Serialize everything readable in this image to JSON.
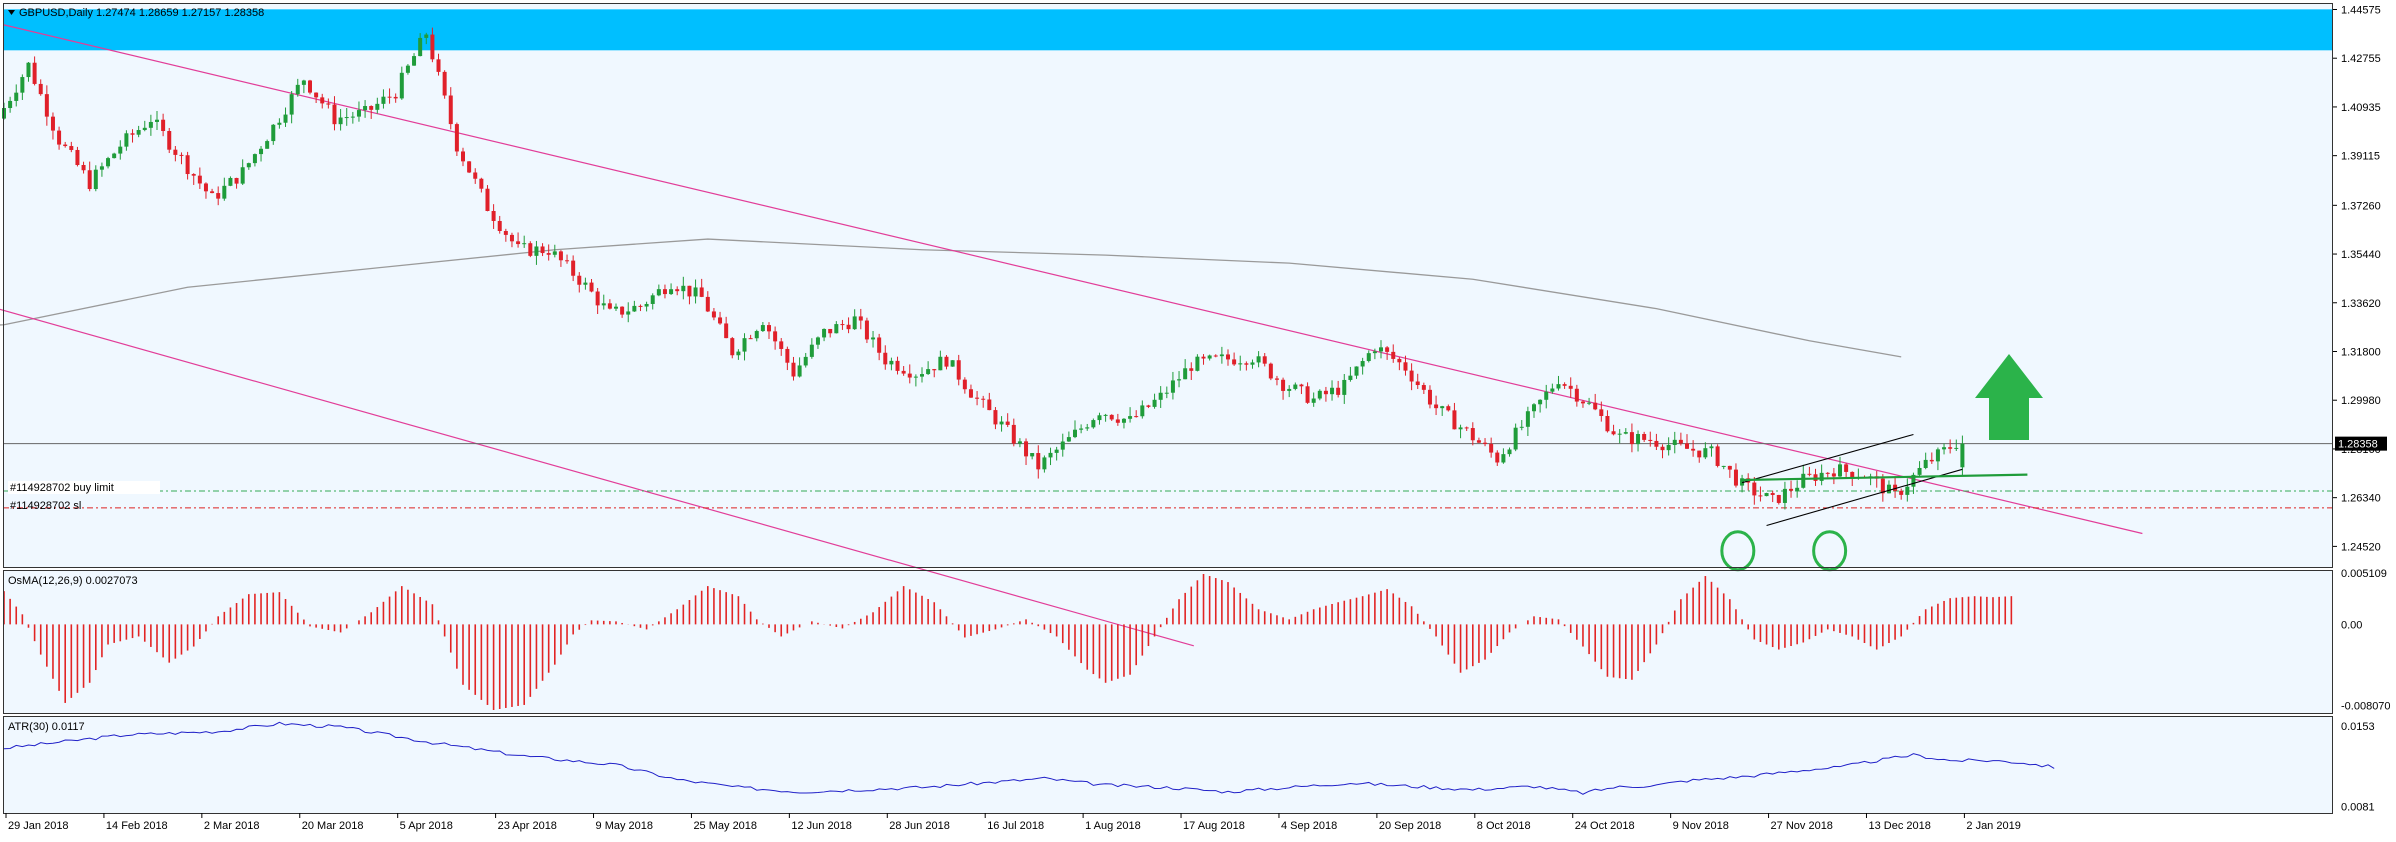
{
  "colors": {
    "background": "#f0f8ff",
    "bull": "#1f9c3a",
    "bear": "#e0202a",
    "channel": "#e23d98",
    "ma": "#9a9a9a",
    "resistance_band": "#00bfff",
    "atr": "#2020c8",
    "arrow": "#2bb34a"
  },
  "header": {
    "symbol_line": "GBPUSD,Daily  1.27474 1.28659 1.27157 1.28358"
  },
  "price_labels": {
    "current": "1.28358",
    "order_buy": "#114928702 buy limit",
    "order_sl": "#114928702 sl"
  },
  "chart_data": [
    {
      "type": "candlestick",
      "title": "GBPUSD,Daily",
      "last_bar": {
        "open": 1.27474,
        "high": 1.28659,
        "low": 1.27157,
        "close": 1.28358
      },
      "x_ticks": [
        "29 Jan 2018",
        "14 Feb 2018",
        "2 Mar 2018",
        "20 Mar 2018",
        "5 Apr 2018",
        "23 Apr 2018",
        "9 May 2018",
        "25 May 2018",
        "12 Jun 2018",
        "28 Jun 2018",
        "16 Jul 2018",
        "1 Aug 2018",
        "17 Aug 2018",
        "4 Sep 2018",
        "20 Sep 2018",
        "8 Oct 2018",
        "24 Oct 2018",
        "9 Nov 2018",
        "27 Nov 2018",
        "13 Dec 2018",
        "2 Jan 2019"
      ],
      "y_ticks": [
        "1.44575",
        "1.42755",
        "1.40935",
        "1.39115",
        "1.37260",
        "1.35440",
        "1.33620",
        "1.31800",
        "1.29980",
        "1.28160",
        "1.26340",
        "1.24520"
      ],
      "ylim": [
        1.2375,
        1.4478
      ],
      "price_path": [
        [
          0,
          1.405
        ],
        [
          5,
          1.425
        ],
        [
          10,
          1.397
        ],
        [
          15,
          1.381
        ],
        [
          20,
          1.395
        ],
        [
          25,
          1.405
        ],
        [
          30,
          1.39
        ],
        [
          35,
          1.375
        ],
        [
          40,
          1.385
        ],
        [
          45,
          1.402
        ],
        [
          50,
          1.42
        ],
        [
          55,
          1.405
        ],
        [
          60,
          1.407
        ],
        [
          65,
          1.415
        ],
        [
          70,
          1.437
        ],
        [
          75,
          1.395
        ],
        [
          80,
          1.372
        ],
        [
          85,
          1.356
        ],
        [
          90,
          1.356
        ],
        [
          95,
          1.345
        ],
        [
          100,
          1.332
        ],
        [
          105,
          1.335
        ],
        [
          110,
          1.344
        ],
        [
          115,
          1.338
        ],
        [
          120,
          1.318
        ],
        [
          125,
          1.33
        ],
        [
          130,
          1.31
        ],
        [
          135,
          1.325
        ],
        [
          140,
          1.33
        ],
        [
          145,
          1.315
        ],
        [
          150,
          1.31
        ],
        [
          155,
          1.315
        ],
        [
          160,
          1.3
        ],
        [
          165,
          1.288
        ],
        [
          170,
          1.275
        ],
        [
          175,
          1.285
        ],
        [
          180,
          1.296
        ],
        [
          185,
          1.292
        ],
        [
          190,
          1.301
        ],
        [
          195,
          1.313
        ],
        [
          200,
          1.315
        ],
        [
          205,
          1.316
        ],
        [
          210,
          1.306
        ],
        [
          215,
          1.3
        ],
        [
          220,
          1.305
        ],
        [
          225,
          1.32
        ],
        [
          230,
          1.312
        ],
        [
          235,
          1.297
        ],
        [
          240,
          1.288
        ],
        [
          245,
          1.278
        ],
        [
          250,
          1.293
        ],
        [
          255,
          1.308
        ],
        [
          260,
          1.298
        ],
        [
          265,
          1.286
        ],
        [
          270,
          1.285
        ],
        [
          275,
          1.282
        ],
        [
          280,
          1.28
        ],
        [
          285,
          1.268
        ],
        [
          290,
          1.262
        ],
        [
          295,
          1.27
        ],
        [
          300,
          1.274
        ],
        [
          305,
          1.272
        ],
        [
          310,
          1.264
        ],
        [
          315,
          1.276
        ],
        [
          320,
          1.284
        ]
      ],
      "bars": 321,
      "channel_upper": [
        [
          0,
          1.44
        ],
        [
          320,
          1.266
        ]
      ],
      "channel_lower": [
        [
          -60,
          1.372
        ],
        [
          165,
          1.227
        ]
      ],
      "wedge_upper": [
        [
          284,
          1.269
        ],
        [
          312,
          1.287
        ]
      ],
      "wedge_lower": [
        [
          288,
          1.253
        ],
        [
          320,
          1.274
        ]
      ],
      "support_line": [
        [
          284,
          1.27
        ],
        [
          320,
          1.272
        ]
      ],
      "ma_200": [
        [
          -80,
          1.318
        ],
        [
          0,
          1.328
        ],
        [
          30,
          1.342
        ],
        [
          60,
          1.349
        ],
        [
          90,
          1.356
        ],
        [
          115,
          1.36
        ],
        [
          150,
          1.356
        ],
        [
          180,
          1.354
        ],
        [
          210,
          1.351
        ],
        [
          240,
          1.345
        ],
        [
          270,
          1.334
        ],
        [
          295,
          1.322
        ],
        [
          310,
          1.316
        ]
      ],
      "resistance_zone": [
        1.4305,
        1.4458
      ],
      "horizontal_lines": {
        "current": 1.28358,
        "buy_limit": 1.2659,
        "stop_loss": 1.2596
      },
      "circles_at": [
        [
          282,
          1.2518
        ],
        [
          297,
          1.2518
        ]
      ],
      "arrow": {
        "direction": "up"
      }
    },
    {
      "type": "bar",
      "title": "OsMA(12,26,9) 0.0027073",
      "y_ticks": [
        "0.005109",
        "0.00",
        "-0.008070"
      ],
      "ylim": [
        -0.0087,
        0.0052
      ],
      "path": [
        [
          0,
          0.0033
        ],
        [
          3,
          0.001
        ],
        [
          6,
          -0.003
        ],
        [
          10,
          -0.0078
        ],
        [
          14,
          -0.0058
        ],
        [
          17,
          -0.002
        ],
        [
          22,
          -0.0012
        ],
        [
          27,
          -0.0038
        ],
        [
          31,
          -0.0022
        ],
        [
          35,
          0.0008
        ],
        [
          40,
          0.003
        ],
        [
          45,
          0.0032
        ],
        [
          50,
          -0.0002
        ],
        [
          55,
          -0.0008
        ],
        [
          60,
          0.0012
        ],
        [
          65,
          0.0038
        ],
        [
          70,
          0.002
        ],
        [
          75,
          -0.006
        ],
        [
          80,
          -0.0085
        ],
        [
          85,
          -0.008
        ],
        [
          90,
          -0.004
        ],
        [
          93,
          -0.001
        ],
        [
          96,
          0.0004
        ],
        [
          100,
          0.0003
        ],
        [
          105,
          -0.0005
        ],
        [
          110,
          0.0015
        ],
        [
          115,
          0.0038
        ],
        [
          120,
          0.0028
        ],
        [
          123,
          0.0005
        ],
        [
          127,
          -0.0012
        ],
        [
          132,
          0.0003
        ],
        [
          137,
          -0.0004
        ],
        [
          142,
          0.0012
        ],
        [
          147,
          0.0038
        ],
        [
          152,
          0.0022
        ],
        [
          157,
          -0.0013
        ],
        [
          162,
          -0.0005
        ],
        [
          167,
          0.0005
        ],
        [
          172,
          -0.0012
        ],
        [
          177,
          -0.0045
        ],
        [
          180,
          -0.0058
        ],
        [
          184,
          -0.005
        ],
        [
          188,
          -0.0012
        ],
        [
          192,
          0.0025
        ],
        [
          196,
          0.005
        ],
        [
          200,
          0.0042
        ],
        [
          205,
          0.0015
        ],
        [
          210,
          0.0005
        ],
        [
          214,
          0.0015
        ],
        [
          218,
          0.0022
        ],
        [
          222,
          0.0028
        ],
        [
          226,
          0.0035
        ],
        [
          230,
          0.0018
        ],
        [
          234,
          -0.0012
        ],
        [
          238,
          -0.0048
        ],
        [
          242,
          -0.0035
        ],
        [
          246,
          -0.0008
        ],
        [
          250,
          0.0008
        ],
        [
          254,
          0.0005
        ],
        [
          258,
          -0.0022
        ],
        [
          262,
          -0.0052
        ],
        [
          266,
          -0.0055
        ],
        [
          270,
          -0.002
        ],
        [
          274,
          0.0025
        ],
        [
          278,
          0.0048
        ],
        [
          282,
          0.0025
        ],
        [
          286,
          -0.0015
        ],
        [
          290,
          -0.0025
        ],
        [
          294,
          -0.0018
        ],
        [
          298,
          -0.0005
        ],
        [
          302,
          -0.0012
        ],
        [
          306,
          -0.0025
        ],
        [
          310,
          -0.0012
        ],
        [
          314,
          0.0015
        ],
        [
          318,
          0.0026
        ],
        [
          322,
          0.0028
        ],
        [
          325,
          0.0027
        ],
        [
          328,
          0.0028
        ]
      ]
    },
    {
      "type": "line",
      "title": "ATR(30) 0.0117",
      "y_ticks": [
        "0.0153",
        "0.0081"
      ],
      "ylim": [
        0.0076,
        0.016
      ],
      "series": [
        {
          "values": [
            [
              0,
              0.0133
            ],
            [
              20,
              0.0145
            ],
            [
              35,
              0.0148
            ],
            [
              45,
              0.0155
            ],
            [
              55,
              0.0152
            ],
            [
              70,
              0.0138
            ],
            [
              85,
              0.0126
            ],
            [
              100,
              0.0118
            ],
            [
              110,
              0.0105
            ],
            [
              120,
              0.0098
            ],
            [
              130,
              0.0094
            ],
            [
              140,
              0.0096
            ],
            [
              150,
              0.0098
            ],
            [
              160,
              0.0102
            ],
            [
              170,
              0.0106
            ],
            [
              180,
              0.01
            ],
            [
              190,
              0.0098
            ],
            [
              200,
              0.0094
            ],
            [
              210,
              0.0098
            ],
            [
              220,
              0.0102
            ],
            [
              230,
              0.0099
            ],
            [
              240,
              0.0096
            ],
            [
              250,
              0.0099
            ],
            [
              258,
              0.0093
            ],
            [
              263,
              0.0098
            ],
            [
              270,
              0.01
            ],
            [
              275,
              0.0104
            ],
            [
              285,
              0.0108
            ],
            [
              295,
              0.0114
            ],
            [
              300,
              0.0116
            ],
            [
              305,
              0.0121
            ],
            [
              312,
              0.0127
            ],
            [
              318,
              0.0122
            ],
            [
              325,
              0.0122
            ],
            [
              330,
              0.012
            ],
            [
              335,
              0.0116
            ]
          ]
        }
      ]
    }
  ]
}
